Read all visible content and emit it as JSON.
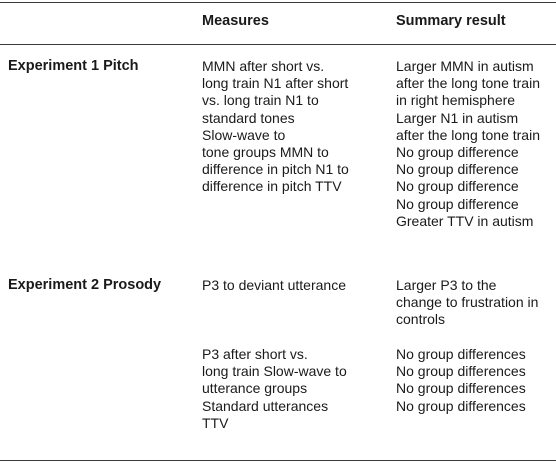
{
  "table": {
    "headers": {
      "row_label": "",
      "measures": "Measures",
      "summary": "Summary result"
    },
    "rows": [
      {
        "label": "Experiment 1 Pitch",
        "measures": "MMN after short vs.\nlong train N1 after short\nvs. long train N1 to\nstandard tones\nSlow-wave to\ntone groups MMN to\ndifference in pitch N1 to\ndifference in pitch TTV",
        "results": "Larger MMN in autism\nafter the long tone train\nin right hemisphere\nLarger N1 in autism\nafter the long tone train\nNo group difference\nNo group difference\nNo group difference\nNo group difference\nGreater TTV in autism"
      },
      {
        "label": "Experiment 2 Prosody",
        "measures": "P3 to deviant utterance",
        "results": "Larger P3 to the\nchange to frustration in\ncontrols"
      },
      {
        "label": "",
        "measures": "P3 after short vs.\nlong train Slow-wave to\nutterance groups\nStandard utterances\nTTV",
        "results": "No group differences\nNo group differences\nNo group differences\nNo group differences"
      }
    ]
  }
}
